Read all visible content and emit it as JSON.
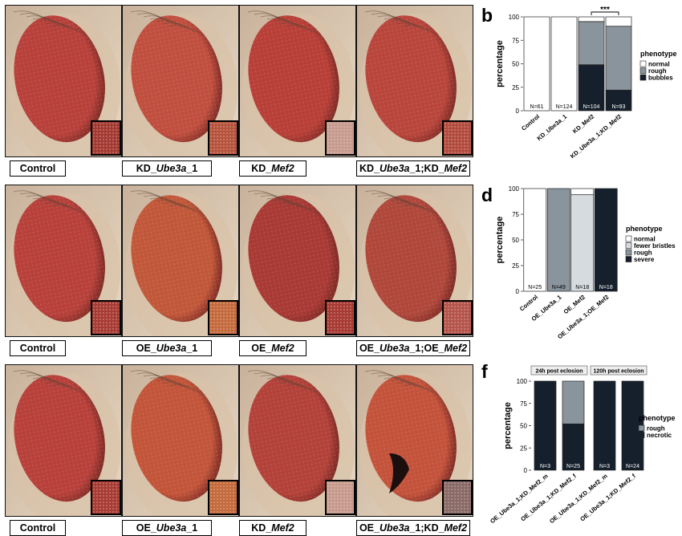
{
  "panel_labels": {
    "a": "a",
    "b": "b",
    "c": "c",
    "d": "d",
    "e": "e",
    "f": "f"
  },
  "rows": [
    {
      "id": "a",
      "captions": [
        [
          {
            "t": "Control",
            "i": false
          }
        ],
        [
          {
            "t": "KD_",
            "i": false
          },
          {
            "t": "Ube3a",
            "i": true
          },
          {
            "t": "_1",
            "i": false
          }
        ],
        [
          {
            "t": "KD_",
            "i": false
          },
          {
            "t": "Mef2",
            "i": true
          }
        ],
        [
          {
            "t": "KD_",
            "i": false
          },
          {
            "t": "Ube3a",
            "i": true
          },
          {
            "t": "_1;KD_",
            "i": false
          },
          {
            "t": "Mef2",
            "i": true
          }
        ]
      ],
      "eye_colors": [
        "#b8413b",
        "#c04f3f",
        "#b84038",
        "#b9463c"
      ],
      "inset_colors": [
        "#a33a32",
        "#b6533c",
        "#c79a8e",
        "#b24b3d"
      ]
    },
    {
      "id": "c",
      "captions": [
        [
          {
            "t": "Control",
            "i": false
          }
        ],
        [
          {
            "t": "OE_",
            "i": false
          },
          {
            "t": "Ube3a",
            "i": true
          },
          {
            "t": "_1",
            "i": false
          }
        ],
        [
          {
            "t": "OE_",
            "i": false
          },
          {
            "t": "Mef2",
            "i": true
          }
        ],
        [
          {
            "t": "OE_",
            "i": false
          },
          {
            "t": "Ube3a",
            "i": true
          },
          {
            "t": "_1;OE_",
            "i": false
          },
          {
            "t": "Mef2",
            "i": true
          }
        ]
      ],
      "eye_colors": [
        "#b8413b",
        "#c2583a",
        "#a93a35",
        "#b0483c"
      ],
      "inset_colors": [
        "#a83c34",
        "#c46a3c",
        "#a83a33",
        "#b5544a"
      ]
    },
    {
      "id": "e",
      "captions": [
        [
          {
            "t": "Control",
            "i": false
          }
        ],
        [
          {
            "t": "OE_",
            "i": false
          },
          {
            "t": "Ube3a",
            "i": true
          },
          {
            "t": "_1",
            "i": false
          }
        ],
        [
          {
            "t": "KD_",
            "i": false
          },
          {
            "t": "Mef2",
            "i": true
          }
        ],
        [
          {
            "t": "OE_",
            "i": false
          },
          {
            "t": "Ube3a",
            "i": true
          },
          {
            "t": "_1;KD_",
            "i": false
          },
          {
            "t": "Mef2",
            "i": true
          }
        ]
      ],
      "eye_colors": [
        "#b8413b",
        "#c2553a",
        "#b3423a",
        "#c4533c"
      ],
      "inset_colors": [
        "#a83c34",
        "#c46a3c",
        "#c7998c",
        "#8a6a66"
      ]
    }
  ],
  "chart_data": [
    {
      "id": "b",
      "type": "bar",
      "ylabel": "percentage",
      "ylim": [
        0,
        100
      ],
      "yticks": [
        0,
        25,
        50,
        75,
        100
      ],
      "categories": [
        "Control",
        "KD_Ube3a_1",
        "KD_Mef2",
        "KD_Ube3a_1;KD_Mef2"
      ],
      "counts": [
        "N=61",
        "N=124",
        "N=104",
        "N=93"
      ],
      "series": [
        {
          "name": "bubbles",
          "color": "#16202c",
          "values": [
            0,
            0,
            49,
            22
          ]
        },
        {
          "name": "rough",
          "color": "#8a949c",
          "values": [
            0,
            0,
            46,
            68
          ]
        },
        {
          "name": "normal",
          "color": "#ffffff",
          "values": [
            100,
            100,
            5,
            10
          ]
        }
      ],
      "significance": {
        "text": "***",
        "from": 2,
        "to": 3
      },
      "legend_title": "phenotype",
      "legend": [
        {
          "name": "normal",
          "color": "#ffffff"
        },
        {
          "name": "rough",
          "color": "#8a949c"
        },
        {
          "name": "bubbles",
          "color": "#16202c"
        }
      ]
    },
    {
      "id": "d",
      "type": "bar",
      "ylabel": "percentage",
      "ylim": [
        0,
        100
      ],
      "yticks": [
        0,
        25,
        50,
        75,
        100
      ],
      "categories": [
        "Control",
        "OE_Ube3a_1",
        "OE_Mef2",
        "OE_Ube3a_1;OE_Mef2"
      ],
      "counts": [
        "N=25",
        "N=49",
        "N=18",
        "N=18"
      ],
      "series": [
        {
          "name": "severe",
          "color": "#16202c",
          "values": [
            0,
            0,
            0,
            100
          ]
        },
        {
          "name": "rough",
          "color": "#8a949c",
          "values": [
            0,
            100,
            0,
            0
          ]
        },
        {
          "name": "fewer bristles",
          "color": "#d6dbe0",
          "values": [
            0,
            0,
            94,
            0
          ]
        },
        {
          "name": "normal",
          "color": "#ffffff",
          "values": [
            100,
            0,
            6,
            0
          ]
        }
      ],
      "legend_title": "phenotype",
      "legend": [
        {
          "name": "normal",
          "color": "#ffffff"
        },
        {
          "name": "fewer bristles",
          "color": "#d6dbe0"
        },
        {
          "name": "rough",
          "color": "#8a949c"
        },
        {
          "name": "severe",
          "color": "#16202c"
        }
      ]
    },
    {
      "id": "f",
      "type": "bar",
      "ylabel": "percentage",
      "ylim": [
        0,
        100
      ],
      "yticks": [
        0,
        25,
        50,
        75,
        100
      ],
      "facets": [
        {
          "title": "24h post eclosion",
          "categories": [
            "OE_Ube3a_1;KD_Mef2_m",
            "OE_Ube3a_1;KD_Mef2_f"
          ],
          "counts": [
            "N=3",
            "N=25"
          ],
          "series": [
            {
              "name": "necrotic",
              "color": "#16202c",
              "values": [
                100,
                52
              ]
            },
            {
              "name": "rough",
              "color": "#8a949c",
              "values": [
                0,
                48
              ]
            }
          ]
        },
        {
          "title": "120h post eclosion",
          "categories": [
            "OE_Ube3a_1;KD_Mef2_m",
            "OE_Ube3a_1;KD_Mef2_f"
          ],
          "counts": [
            "N=3",
            "N=24"
          ],
          "series": [
            {
              "name": "necrotic",
              "color": "#16202c",
              "values": [
                100,
                100
              ]
            },
            {
              "name": "rough",
              "color": "#8a949c",
              "values": [
                0,
                0
              ]
            }
          ]
        }
      ],
      "legend_title": "phenotype",
      "legend": [
        {
          "name": "rough",
          "color": "#8a949c"
        },
        {
          "name": "necrotic",
          "color": "#16202c"
        }
      ]
    }
  ]
}
